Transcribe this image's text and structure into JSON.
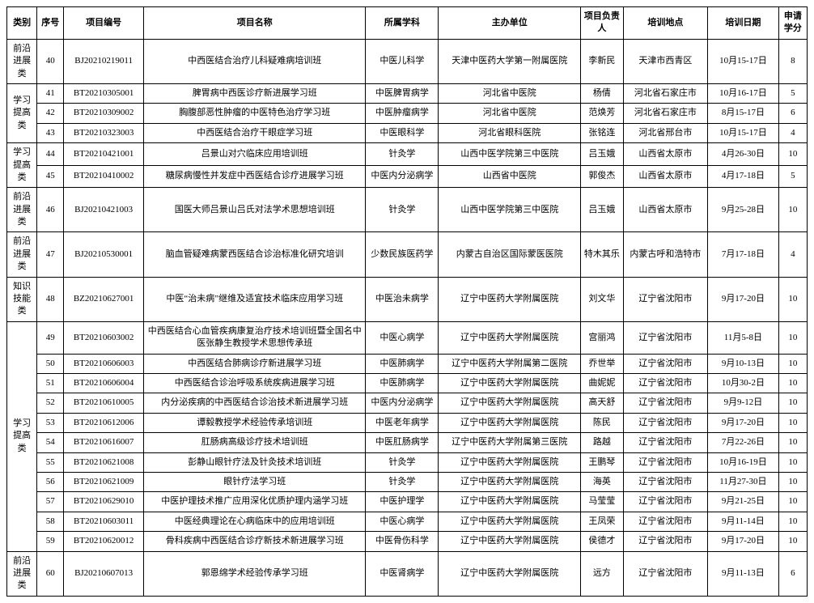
{
  "headers": {
    "category": "类别",
    "seq": "序号",
    "code": "项目编号",
    "name": "项目名称",
    "subject": "所属学科",
    "host": "主办单位",
    "leader": "项目负责人",
    "location": "培训地点",
    "date": "培训日期",
    "credit": "申请学分"
  },
  "groups": [
    {
      "category": "前沿进展类",
      "rows": [
        {
          "seq": "40",
          "code": "BJ20210219011",
          "name": "中西医结合治疗儿科疑难病培训班",
          "subject": "中医儿科学",
          "host": "天津中医药大学第一附属医院",
          "leader": "李新民",
          "location": "天津市西青区",
          "date": "10月15-17日",
          "credit": "8"
        }
      ]
    },
    {
      "category": "学习提高类",
      "rows": [
        {
          "seq": "41",
          "code": "BT20210305001",
          "name": "脾胃病中西医诊疗新进展学习班",
          "subject": "中医脾胃病学",
          "host": "河北省中医院",
          "leader": "杨倩",
          "location": "河北省石家庄市",
          "date": "10月16-17日",
          "credit": "5"
        },
        {
          "seq": "42",
          "code": "BT20210309002",
          "name": "胸腹部恶性肿瘤的中医特色治疗学习班",
          "subject": "中医肿瘤病学",
          "host": "河北省中医院",
          "leader": "范焕芳",
          "location": "河北省石家庄市",
          "date": "8月15-17日",
          "credit": "6"
        },
        {
          "seq": "43",
          "code": "BT20210323003",
          "name": "中西医结合治疗干眼症学习班",
          "subject": "中医眼科学",
          "host": "河北省眼科医院",
          "leader": "张铭连",
          "location": "河北省邢台市",
          "date": "10月15-17日",
          "credit": "4"
        }
      ]
    },
    {
      "category": "学习提高类",
      "rows": [
        {
          "seq": "44",
          "code": "BT20210421001",
          "name": "吕景山对穴临床应用培训班",
          "subject": "针灸学",
          "host": "山西中医学院第三中医院",
          "leader": "吕玉娥",
          "location": "山西省太原市",
          "date": "4月26-30日",
          "credit": "10"
        },
        {
          "seq": "45",
          "code": "BT20210410002",
          "name": "糖尿病慢性并发症中西医结合诊疗进展学习班",
          "subject": "中医内分泌病学",
          "host": "山西省中医院",
          "leader": "郭俊杰",
          "location": "山西省太原市",
          "date": "4月17-18日",
          "credit": "5"
        }
      ]
    },
    {
      "category": "前沿进展类",
      "rows": [
        {
          "seq": "46",
          "code": "BJ20210421003",
          "name": "国医大师吕景山吕氏对法学术思想培训班",
          "subject": "针灸学",
          "host": "山西中医学院第三中医院",
          "leader": "吕玉娥",
          "location": "山西省太原市",
          "date": "9月25-28日",
          "credit": "10"
        }
      ]
    },
    {
      "category": "前沿进展类",
      "rows": [
        {
          "seq": "47",
          "code": "BJ20210530001",
          "name": "脑血管疑难病蒙西医结合诊治标准化研究培训",
          "subject": "少数民族医药学",
          "host": "内蒙古自治区国际蒙医医院",
          "leader": "特木其乐",
          "location": "内蒙古呼和浩特市",
          "date": "7月17-18日",
          "credit": "4"
        }
      ]
    },
    {
      "category": "知识技能类",
      "rows": [
        {
          "seq": "48",
          "code": "BZ20210627001",
          "name": "中医“治未病”继维及适宜技术临床应用学习班",
          "subject": "中医治未病学",
          "host": "辽宁中医药大学附属医院",
          "leader": "刘文华",
          "location": "辽宁省沈阳市",
          "date": "9月17-20日",
          "credit": "10"
        }
      ]
    },
    {
      "category": "学习提高类",
      "rows": [
        {
          "seq": "49",
          "code": "BT20210603002",
          "name": "中西医结合心血管疾病康复治疗技术培训班暨全国名中医张静生教授学术思想传承班",
          "subject": "中医心病学",
          "host": "辽宁中医药大学附属医院",
          "leader": "宫丽鸿",
          "location": "辽宁省沈阳市",
          "date": "11月5-8日",
          "credit": "10"
        },
        {
          "seq": "50",
          "code": "BT20210606003",
          "name": "中西医结合肺病诊疗新进展学习班",
          "subject": "中医肺病学",
          "host": "辽宁中医药大学附属第二医院",
          "leader": "乔世举",
          "location": "辽宁省沈阳市",
          "date": "9月10-13日",
          "credit": "10"
        },
        {
          "seq": "51",
          "code": "BT20210606004",
          "name": "中西医结合诊治呼吸系统疾病进展学习班",
          "subject": "中医肺病学",
          "host": "辽宁中医药大学附属医院",
          "leader": "曲妮妮",
          "location": "辽宁省沈阳市",
          "date": "10月30-2日",
          "credit": "10"
        },
        {
          "seq": "52",
          "code": "BT20210610005",
          "name": "内分泌疾病的中西医结合诊治技术新进展学习班",
          "subject": "中医内分泌病学",
          "host": "辽宁中医药大学附属医院",
          "leader": "高天舒",
          "location": "辽宁省沈阳市",
          "date": "9月9-12日",
          "credit": "10"
        },
        {
          "seq": "53",
          "code": "BT20210612006",
          "name": "谭毅教授学术经验传承培训班",
          "subject": "中医老年病学",
          "host": "辽宁中医药大学附属医院",
          "leader": "陈民",
          "location": "辽宁省沈阳市",
          "date": "9月17-20日",
          "credit": "10"
        },
        {
          "seq": "54",
          "code": "BT20210616007",
          "name": "肛肠病高级诊疗技术培训班",
          "subject": "中医肛肠病学",
          "host": "辽宁中医药大学附属第三医院",
          "leader": "路越",
          "location": "辽宁省沈阳市",
          "date": "7月22-26日",
          "credit": "10"
        },
        {
          "seq": "55",
          "code": "BT20210621008",
          "name": "彭静山眼针疗法及针灸技术培训班",
          "subject": "针灸学",
          "host": "辽宁中医药大学附属医院",
          "leader": "王鹏琴",
          "location": "辽宁省沈阳市",
          "date": "10月16-19日",
          "credit": "10"
        },
        {
          "seq": "56",
          "code": "BT20210621009",
          "name": "眼针疗法学习班",
          "subject": "针灸学",
          "host": "辽宁中医药大学附属医院",
          "leader": "海英",
          "location": "辽宁省沈阳市",
          "date": "11月27-30日",
          "credit": "10"
        },
        {
          "seq": "57",
          "code": "BT20210629010",
          "name": "中医护理技术推广应用深化优质护理内涵学习班",
          "subject": "中医护理学",
          "host": "辽宁中医药大学附属医院",
          "leader": "马莹莹",
          "location": "辽宁省沈阳市",
          "date": "9月21-25日",
          "credit": "10"
        },
        {
          "seq": "58",
          "code": "BT20210603011",
          "name": "中医经典理论在心病临床中的应用培训班",
          "subject": "中医心病学",
          "host": "辽宁中医药大学附属医院",
          "leader": "王凤荣",
          "location": "辽宁省沈阳市",
          "date": "9月11-14日",
          "credit": "10"
        },
        {
          "seq": "59",
          "code": "BT20210620012",
          "name": "骨科疾病中西医结合诊疗新技术新进展学习班",
          "subject": "中医骨伤科学",
          "host": "辽宁中医药大学附属医院",
          "leader": "侯德才",
          "location": "辽宁省沈阳市",
          "date": "9月17-20日",
          "credit": "10"
        }
      ]
    },
    {
      "category": "前沿进展类",
      "rows": [
        {
          "seq": "60",
          "code": "BJ20210607013",
          "name": "郭恩绵学术经验传承学习班",
          "subject": "中医肾病学",
          "host": "辽宁中医药大学附属医院",
          "leader": "远方",
          "location": "辽宁省沈阳市",
          "date": "9月11-13日",
          "credit": "6"
        }
      ]
    }
  ]
}
